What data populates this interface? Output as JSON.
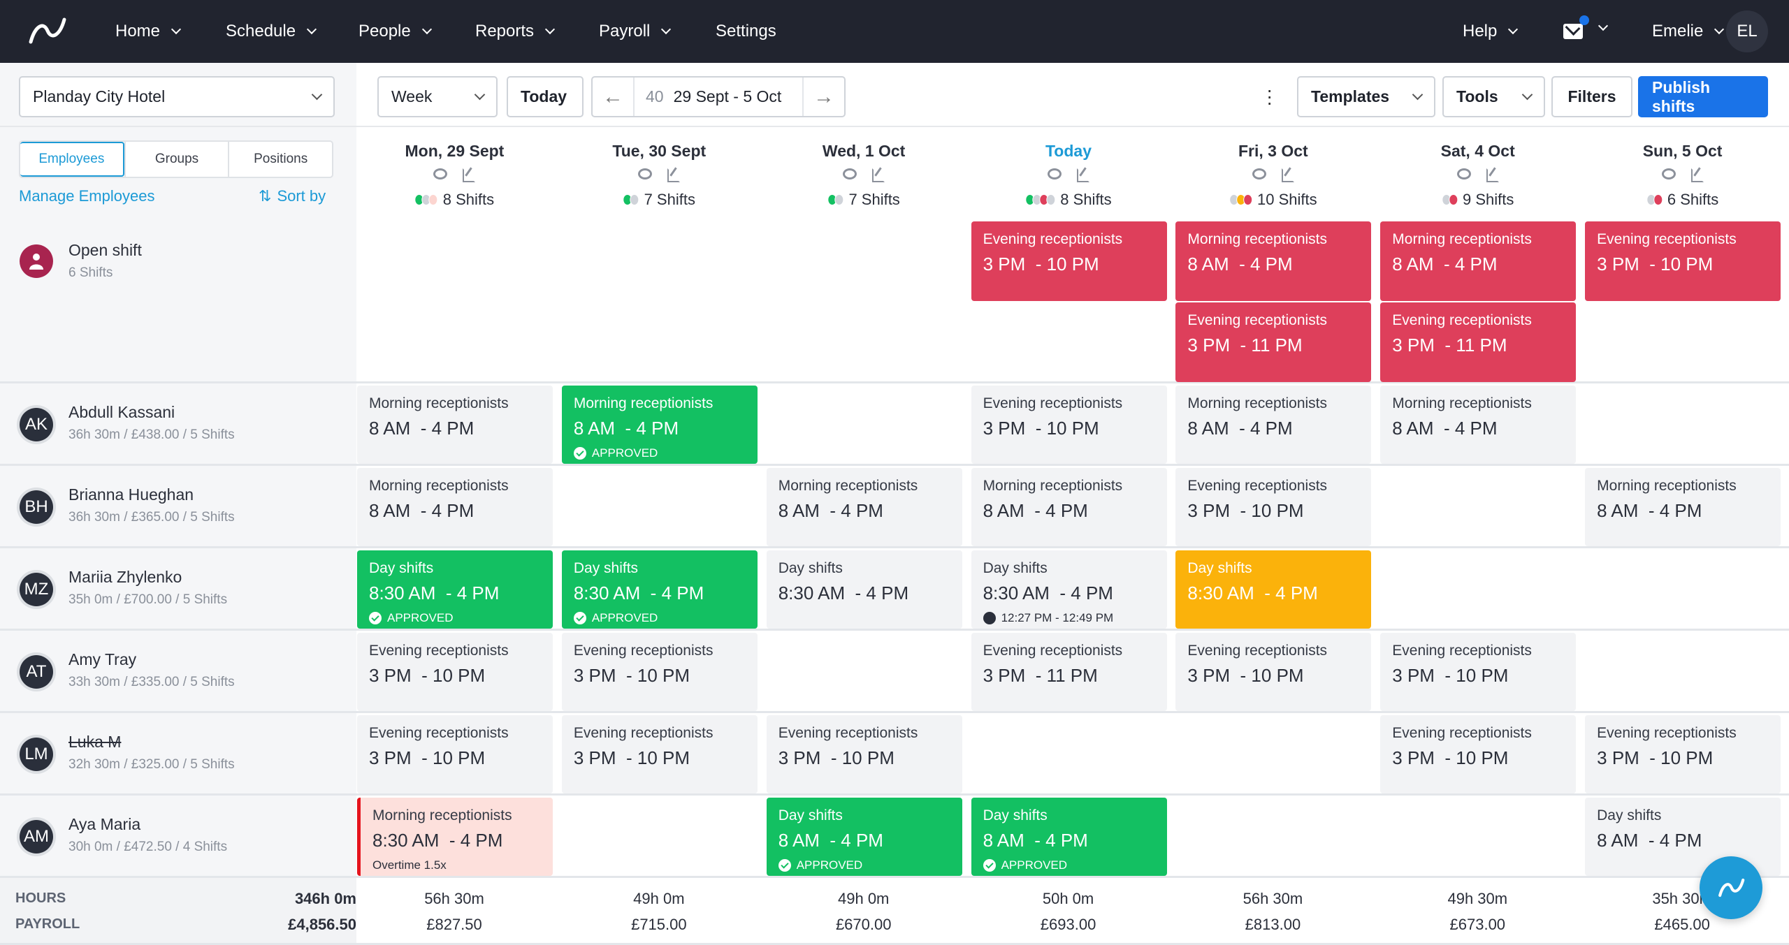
{
  "nav": {
    "items": [
      "Home",
      "Schedule",
      "People",
      "Reports",
      "Payroll",
      "Settings"
    ],
    "help": "Help",
    "user": "Emelie",
    "initials": "EL"
  },
  "toolbar": {
    "location": "Planday City Hotel",
    "view": "Week",
    "today": "Today",
    "week_number": "40",
    "date_range": "29 Sept - 5 Oct",
    "templates": "Templates",
    "tools": "Tools",
    "filters": "Filters",
    "publish": "Publish shifts"
  },
  "sidebar": {
    "tabs": [
      "Employees",
      "Groups",
      "Positions"
    ],
    "active_tab": "Employees",
    "manage": "Manage Employees",
    "sort": "Sort by"
  },
  "colors": {
    "approved": "#13c062",
    "open": "#de3f5b",
    "warning": "#fbb20b",
    "accent": "#1c9ad6",
    "publish": "#1a73e8",
    "grey": "#cfd3d9",
    "pink": "#fcd5d0"
  },
  "days": [
    {
      "label": "Mon, 29 Sept",
      "shifts": "8 Shifts",
      "dots": [
        "approved",
        "grey",
        "pink"
      ]
    },
    {
      "label": "Tue, 30 Sept",
      "shifts": "7 Shifts",
      "dots": [
        "approved",
        "grey"
      ]
    },
    {
      "label": "Wed, 1 Oct",
      "shifts": "7 Shifts",
      "dots": [
        "approved",
        "grey"
      ]
    },
    {
      "label": "Today",
      "shifts": "8 Shifts",
      "dots": [
        "approved",
        "grey",
        "open",
        "grey"
      ],
      "today": true
    },
    {
      "label": "Fri, 3 Oct",
      "shifts": "10 Shifts",
      "dots": [
        "grey",
        "warning",
        "open"
      ]
    },
    {
      "label": "Sat, 4 Oct",
      "shifts": "9 Shifts",
      "dots": [
        "grey",
        "open"
      ]
    },
    {
      "label": "Sun, 5 Oct",
      "shifts": "6 Shifts",
      "dots": [
        "grey",
        "open"
      ]
    }
  ],
  "rows": [
    {
      "name": "Open shift",
      "sub": "6 Shifts",
      "open": true,
      "cells": [
        [],
        [],
        [],
        [
          {
            "title": "Evening receptionists",
            "time": "3 PM  - 10 PM",
            "status": "open"
          }
        ],
        [
          {
            "title": "Morning receptionists",
            "time": "8 AM  - 4 PM",
            "status": "open"
          },
          {
            "title": "Evening receptionists",
            "time": "3 PM  - 11 PM",
            "status": "open"
          }
        ],
        [
          {
            "title": "Morning receptionists",
            "time": "8 AM  - 4 PM",
            "status": "open"
          },
          {
            "title": "Evening receptionists",
            "time": "3 PM  - 11 PM",
            "status": "open"
          }
        ],
        [
          {
            "title": "Evening receptionists",
            "time": "3 PM  - 10 PM",
            "status": "open"
          }
        ]
      ]
    },
    {
      "name": "Abdull Kassani",
      "initials": "AK",
      "sub": "36h 30m / £438.00 / 5 Shifts",
      "cells": [
        [
          {
            "title": "Morning receptionists",
            "time": "8 AM  - 4 PM"
          }
        ],
        [
          {
            "title": "Morning receptionists",
            "time": "8 AM  - 4 PM",
            "status": "approved",
            "extra": "APPROVED"
          }
        ],
        [],
        [
          {
            "title": "Evening receptionists",
            "time": "3 PM  - 10 PM"
          }
        ],
        [
          {
            "title": "Morning receptionists",
            "time": "8 AM  - 4 PM"
          }
        ],
        [
          {
            "title": "Morning receptionists",
            "time": "8 AM  - 4 PM"
          }
        ],
        []
      ]
    },
    {
      "name": "Brianna Hueghan",
      "initials": "BH",
      "sub": "36h 30m / £365.00 / 5 Shifts",
      "cells": [
        [
          {
            "title": "Morning receptionists",
            "time": "8 AM  - 4 PM"
          }
        ],
        [],
        [
          {
            "title": "Morning receptionists",
            "time": "8 AM  - 4 PM"
          }
        ],
        [
          {
            "title": "Morning receptionists",
            "time": "8 AM  - 4 PM"
          }
        ],
        [
          {
            "title": "Evening receptionists",
            "time": "3 PM  - 10 PM"
          }
        ],
        [],
        [
          {
            "title": "Morning receptionists",
            "time": "8 AM  - 4 PM"
          }
        ]
      ]
    },
    {
      "name": "Mariia Zhylenko",
      "initials": "MZ",
      "sub": "35h 0m / £700.00 / 5 Shifts",
      "cells": [
        [
          {
            "title": "Day shifts",
            "time": "8:30 AM  - 4 PM",
            "status": "approved",
            "extra": "APPROVED"
          }
        ],
        [
          {
            "title": "Day shifts",
            "time": "8:30 AM  - 4 PM",
            "status": "approved",
            "extra": "APPROVED"
          }
        ],
        [
          {
            "title": "Day shifts",
            "time": "8:30 AM  - 4 PM"
          }
        ],
        [
          {
            "title": "Day shifts",
            "time": "8:30 AM  - 4 PM",
            "extra": "12:27 PM - 12:49 PM",
            "timer": true
          }
        ],
        [
          {
            "title": "Day shifts",
            "time": "8:30 AM  - 4 PM",
            "status": "warning"
          }
        ],
        [],
        []
      ]
    },
    {
      "name": "Amy Tray",
      "initials": "AT",
      "sub": "33h 30m / £335.00 / 5 Shifts",
      "cells": [
        [
          {
            "title": "Evening receptionists",
            "time": "3 PM  - 10 PM"
          }
        ],
        [
          {
            "title": "Evening receptionists",
            "time": "3 PM  - 10 PM"
          }
        ],
        [],
        [
          {
            "title": "Evening receptionists",
            "time": "3 PM  - 11 PM"
          }
        ],
        [
          {
            "title": "Evening receptionists",
            "time": "3 PM  - 10 PM"
          }
        ],
        [
          {
            "title": "Evening receptionists",
            "time": "3 PM  - 10 PM"
          }
        ],
        []
      ]
    },
    {
      "name": "Luka M",
      "initials": "LM",
      "strike": true,
      "sub": "32h 30m / £325.00 / 5 Shifts",
      "cells": [
        [
          {
            "title": "Evening receptionists",
            "time": "3 PM  - 10 PM"
          }
        ],
        [
          {
            "title": "Evening receptionists",
            "time": "3 PM  - 10 PM"
          }
        ],
        [
          {
            "title": "Evening receptionists",
            "time": "3 PM  - 10 PM"
          }
        ],
        [],
        [],
        [
          {
            "title": "Evening receptionists",
            "time": "3 PM  - 10 PM"
          }
        ],
        [
          {
            "title": "Evening receptionists",
            "time": "3 PM  - 10 PM"
          }
        ]
      ]
    },
    {
      "name": "Aya Maria",
      "initials": "AM",
      "sub": "30h 0m / £472.50 / 4 Shifts",
      "cells": [
        [
          {
            "title": "Morning receptionists",
            "time": "8:30 AM  - 4 PM",
            "status": "overtime",
            "extra": "Overtime 1.5x"
          }
        ],
        [],
        [
          {
            "title": "Day shifts",
            "time": "8 AM  - 4 PM",
            "status": "approved",
            "extra": "APPROVED"
          }
        ],
        [
          {
            "title": "Day shifts",
            "time": "8 AM  - 4 PM",
            "status": "approved",
            "extra": "APPROVED"
          }
        ],
        [],
        [],
        [
          {
            "title": "Day shifts",
            "time": "8 AM  - 4 PM"
          }
        ]
      ]
    }
  ],
  "footer": {
    "hours_label": "HOURS",
    "payroll_label": "PAYROLL",
    "hours_total": "346h 0m",
    "payroll_total": "£4,856.50",
    "hours": [
      "56h 30m",
      "49h 0m",
      "49h 0m",
      "50h 0m",
      "56h 30m",
      "49h 30m",
      "35h 30m"
    ],
    "payroll": [
      "£827.50",
      "£715.00",
      "£670.00",
      "£693.00",
      "£813.00",
      "£673.00",
      "£465.00"
    ]
  }
}
